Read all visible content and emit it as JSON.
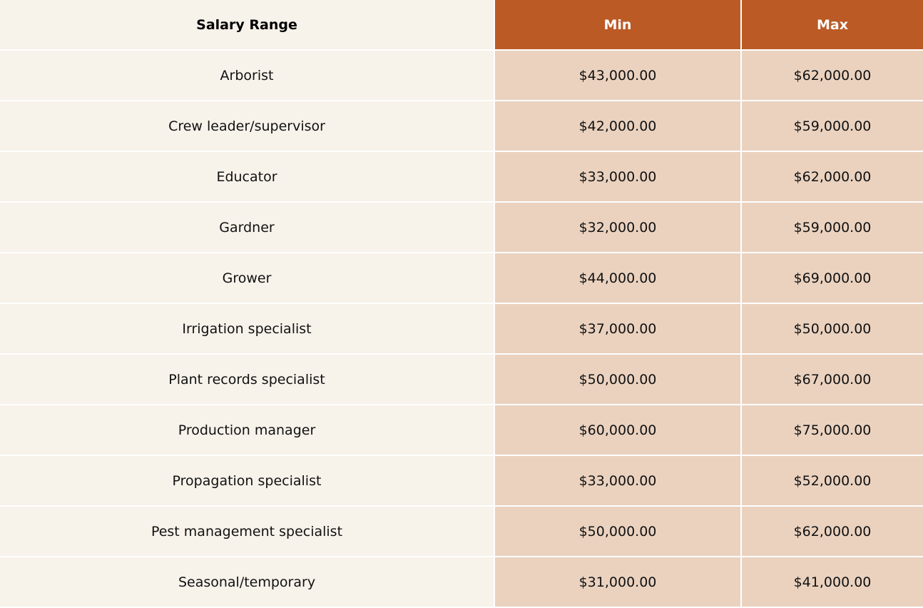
{
  "table": {
    "headers": [
      "Salary Range",
      "Min",
      "Max"
    ],
    "rows": [
      [
        "Arborist",
        "$43,000.00",
        "$62,000.00"
      ],
      [
        "Crew leader/supervisor",
        "$42,000.00",
        "$59,000.00"
      ],
      [
        "Educator",
        "$33,000.00",
        "$62,000.00"
      ],
      [
        "Gardner",
        "$32,000.00",
        "$59,000.00"
      ],
      [
        "Grower",
        "$44,000.00",
        "$69,000.00"
      ],
      [
        "Irrigation specialist",
        "$37,000.00",
        "$50,000.00"
      ],
      [
        "Plant records specialist",
        "$50,000.00",
        "$67,000.00"
      ],
      [
        "Production manager",
        "$60,000.00",
        "$75,000.00"
      ],
      [
        "Propagation specialist",
        "$33,000.00",
        "$52,000.00"
      ],
      [
        "Pest management specialist",
        "$50,000.00",
        "$62,000.00"
      ],
      [
        "Seasonal/temporary",
        "$31,000.00",
        "$41,000.00"
      ]
    ]
  },
  "colors": {
    "header_accent": "#bb5a24",
    "label_bg": "#f7f2ea",
    "value_bg": "#ead2bf"
  }
}
